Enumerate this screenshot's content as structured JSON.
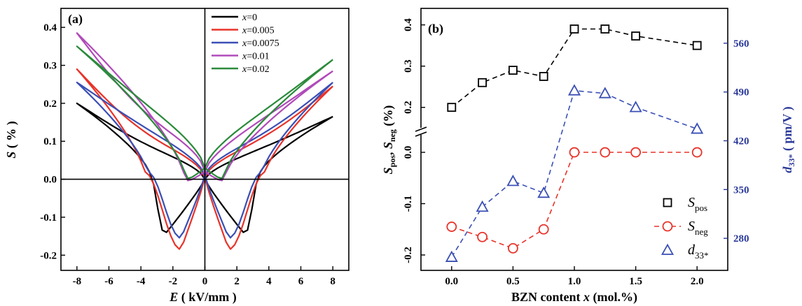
{
  "chart_data": [
    {
      "panel_label": "(a)",
      "type": "line",
      "xlabel_symbol": "E",
      "xlabel_unit": "( kV/mm )",
      "ylabel_symbol": "S",
      "ylabel_unit": "( % )",
      "xlim": [
        -9,
        9
      ],
      "ylim": [
        -0.24,
        0.45
      ],
      "xticks": [
        "-8",
        "-6",
        "-4",
        "-2",
        "0",
        "2",
        "4",
        "6",
        "8"
      ],
      "xtick_values": [
        -8,
        -6,
        -4,
        -2,
        0,
        2,
        4,
        6,
        8
      ],
      "yticks": [
        "-0.2",
        "-0.1",
        "0.0",
        "0.1",
        "0.2",
        "0.3",
        "0.4"
      ],
      "ytick_values": [
        -0.2,
        -0.1,
        0.0,
        0.1,
        0.2,
        0.3,
        0.4
      ],
      "grid": false,
      "legend_position": "top-right",
      "series": [
        {
          "name_prefix": "x",
          "name_value": "=0",
          "color": "#000000",
          "ends": 0.165,
          "start": 0.2,
          "tip_x": 2.5,
          "tip_y": -0.145,
          "switch_x": 3.5,
          "zero_y": 0.0,
          "mid_y": 0.09
        },
        {
          "name_prefix": "x",
          "name_value": "=0.005",
          "color": "#e8332a",
          "ends": 0.245,
          "start": 0.29,
          "tip_x": 1.5,
          "tip_y": -0.185,
          "switch_x": 3.8,
          "zero_y": 0.005,
          "mid_y": 0.12
        },
        {
          "name_prefix": "x",
          "name_value": "=0.0075",
          "color": "#3a4fb5",
          "ends": 0.255,
          "start": 0.255,
          "tip_x": 1.5,
          "tip_y": -0.155,
          "switch_x": 3.6,
          "zero_y": 0.01,
          "mid_y": 0.13
        },
        {
          "name_prefix": "x",
          "name_value": "=0.01",
          "color": "#b04aba",
          "ends": 0.285,
          "start": 0.385,
          "tip_x": 1.0,
          "tip_y": -0.005,
          "switch_x": 1.4,
          "zero_y": 0.02,
          "mid_y": 0.17
        },
        {
          "name_prefix": "x",
          "name_value": "=0.02",
          "color": "#2a8a3a",
          "ends": 0.315,
          "start": 0.35,
          "tip_x": 1.0,
          "tip_y": 0.0,
          "switch_x": 1.3,
          "zero_y": 0.03,
          "mid_y": 0.19
        }
      ]
    },
    {
      "panel_label": "(b)",
      "type": "line",
      "xlabel": "BZN content x (mol.%)",
      "ylabel_left": "S_pos, S_neg (%)",
      "ylabel_right": "d33* (pm/V)",
      "xlim": [
        -0.25,
        2.25
      ],
      "xticks": [
        "0.0",
        "0.5",
        "1.0",
        "1.5",
        "2.0"
      ],
      "xtick_values": [
        0.0,
        0.5,
        1.0,
        1.5,
        2.0
      ],
      "upper_left_ylim": [
        0.13,
        0.44
      ],
      "upper_left_yticks": [
        "0.2",
        "0.3",
        "0.4"
      ],
      "upper_left_ytick_values": [
        0.2,
        0.3,
        0.4
      ],
      "lower_left_ylim": [
        -0.23,
        0.03
      ],
      "lower_left_yticks": [
        "-0.2",
        "-0.1",
        "0.0"
      ],
      "lower_left_ytick_values": [
        -0.2,
        -0.1,
        0.0
      ],
      "right_ylim": [
        234,
        610
      ],
      "right_yticks": [
        "280",
        "350",
        "420",
        "490",
        "560"
      ],
      "right_ytick_values": [
        280,
        350,
        420,
        490,
        560
      ],
      "axis_break": true,
      "grid": false,
      "legend_position": "bottom-right",
      "x": [
        0.0,
        0.25,
        0.5,
        0.75,
        1.0,
        1.25,
        1.5,
        2.0
      ],
      "series": [
        {
          "name": "S",
          "name_sub": "pos",
          "marker": "square",
          "color": "#000000",
          "line": "dashed",
          "axis": "upper_left",
          "values": [
            0.2,
            0.26,
            0.29,
            0.275,
            0.39,
            0.39,
            0.373,
            0.35
          ]
        },
        {
          "name": "S",
          "name_sub": "neg",
          "marker": "circle",
          "color": "#e8332a",
          "line": "dashed",
          "axis": "lower_left",
          "values": [
            -0.145,
            -0.165,
            -0.187,
            -0.15,
            0.0,
            0.0,
            0.0,
            0.0
          ]
        },
        {
          "name": "d",
          "name_sub": "33*",
          "marker": "triangle",
          "color": "#3a4fb5",
          "line": "dashed",
          "axis": "right",
          "values": [
            253,
            325,
            362,
            345,
            492,
            488,
            468,
            437
          ]
        }
      ]
    }
  ]
}
